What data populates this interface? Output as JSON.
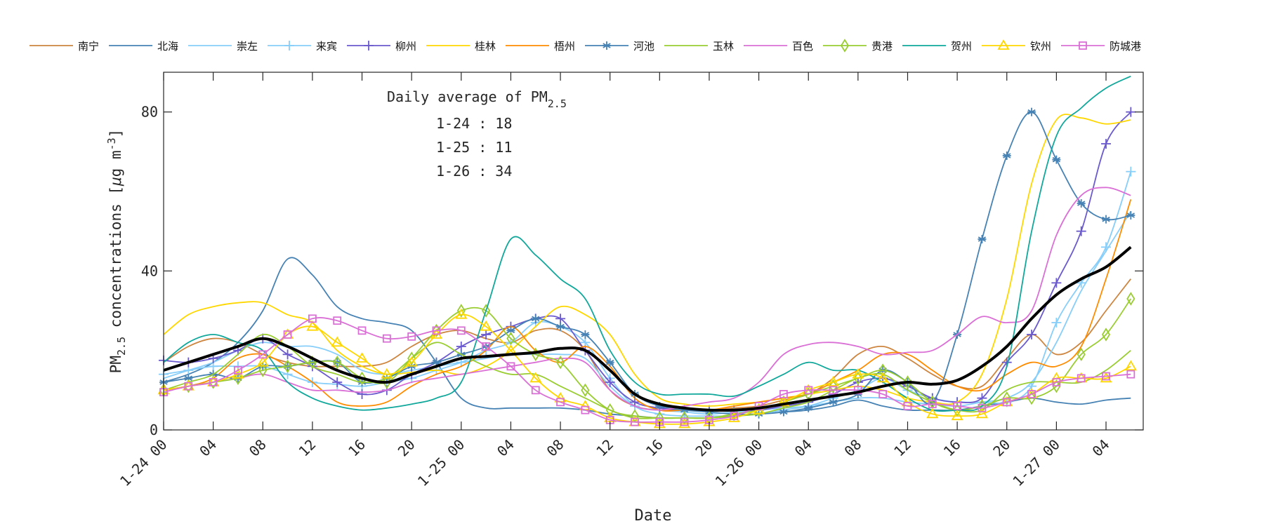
{
  "chart_data": {
    "type": "line",
    "xlabel": "Date",
    "ylabel": "PM2.5 concentrations [μg m-3]",
    "ylabel_parts": {
      "base": "PM",
      "sub": "2.5",
      "mid": " concentrations [",
      "mu": "μ",
      "unit": "g m",
      "sup": "-3",
      "end": "]"
    },
    "ylim": [
      0,
      90
    ],
    "xlim": [
      "1-24 00",
      "1-27 07"
    ],
    "yticks": [
      0,
      40,
      80
    ],
    "xticks": [
      "1-24 00",
      "04",
      "08",
      "12",
      "16",
      "20",
      "1-25 00",
      "04",
      "08",
      "12",
      "16",
      "20",
      "1-26 00",
      "04",
      "08",
      "12",
      "16",
      "20",
      "1-27 00",
      "04"
    ],
    "grid": false,
    "legend_placement": "top, outside",
    "annotation": {
      "title_base": "Daily average of PM",
      "title_sub": "2.5",
      "lines": [
        "1-24 : 18",
        "1-25 : 11",
        "1-26 : 34"
      ]
    },
    "x": [
      "1-24 00",
      "1-24 02",
      "1-24 04",
      "1-24 06",
      "1-24 08",
      "1-24 10",
      "1-24 12",
      "1-24 14",
      "1-24 16",
      "1-24 18",
      "1-24 20",
      "1-24 22",
      "1-25 00",
      "1-25 02",
      "1-25 04",
      "1-25 06",
      "1-25 08",
      "1-25 10",
      "1-25 12",
      "1-25 14",
      "1-25 16",
      "1-25 18",
      "1-25 20",
      "1-25 22",
      "1-26 00",
      "1-26 02",
      "1-26 04",
      "1-26 06",
      "1-26 08",
      "1-26 10",
      "1-26 12",
      "1-26 14",
      "1-26 16",
      "1-26 18",
      "1-26 20",
      "1-26 22",
      "1-27 00",
      "1-27 02",
      "1-27 04",
      "1-27 06"
    ],
    "series": [
      {
        "name": "南宁",
        "color": "#cd853f",
        "marker": "none",
        "values": [
          17,
          21,
          23,
          22,
          19,
          17,
          16,
          16,
          16,
          17,
          21,
          24,
          25,
          23,
          22,
          25,
          25,
          20,
          10,
          6,
          5,
          5,
          5,
          5.5,
          6,
          7.5,
          9,
          13,
          19,
          21,
          18,
          14,
          11,
          11,
          18,
          24,
          19,
          22,
          30,
          38
        ]
      },
      {
        "name": "北海",
        "color": "#4682b4",
        "marker": "none",
        "values": [
          12,
          14,
          17,
          22,
          30,
          43,
          39,
          31,
          28,
          27,
          25,
          17,
          8,
          5.5,
          5.5,
          5.5,
          5.5,
          5,
          4,
          3.5,
          3,
          3,
          3,
          3.5,
          4,
          4.5,
          5,
          6,
          7.5,
          6,
          5,
          5,
          5,
          6,
          7,
          8,
          7,
          6.5,
          7.5,
          8
        ]
      },
      {
        "name": "崇左",
        "color": "#87cefa",
        "marker": "none",
        "values": [
          13,
          15,
          17,
          20,
          22,
          21,
          21,
          19,
          15,
          14,
          15,
          16,
          17,
          18,
          19,
          19,
          19,
          18,
          11,
          6,
          5,
          4.5,
          4,
          4.5,
          5,
          5.5,
          6,
          7,
          8,
          8,
          7,
          6.5,
          6,
          7,
          8,
          12,
          22,
          35,
          45,
          55
        ]
      },
      {
        "name": "来宾",
        "color": "#87cefa",
        "marker": "plus",
        "values": [
          14,
          15,
          16,
          16,
          16,
          14,
          12,
          11.5,
          11,
          12,
          13,
          15,
          17,
          20,
          22,
          27,
          26,
          22,
          13,
          6,
          4,
          3.5,
          3.5,
          3.5,
          4,
          5,
          6,
          8,
          10,
          13,
          10,
          8,
          7,
          7,
          7,
          11,
          27,
          37,
          46,
          65
        ]
      },
      {
        "name": "柳州",
        "color": "#6a5acd",
        "marker": "plus",
        "values": [
          17.5,
          17,
          18,
          20,
          23,
          19,
          16,
          12,
          9,
          10,
          14,
          17,
          21,
          24,
          26,
          28,
          28,
          20,
          12,
          7,
          5.5,
          5,
          5,
          5,
          5,
          6,
          7,
          9,
          12,
          13,
          11,
          8,
          7,
          8,
          17,
          24,
          37,
          50,
          72,
          80
        ]
      },
      {
        "name": "桂林",
        "color": "#ffd700",
        "marker": "none",
        "values": [
          24,
          29,
          31,
          32,
          32,
          29,
          27,
          20,
          16,
          14,
          14.5,
          15,
          14,
          16,
          20,
          26,
          31,
          29,
          24,
          14,
          8,
          6.5,
          6,
          6.5,
          7,
          8,
          9,
          10,
          11,
          10,
          8,
          7,
          7,
          14,
          33,
          62,
          78,
          78.5,
          77,
          78
        ]
      },
      {
        "name": "梧州",
        "color": "#ff8c00",
        "marker": "none",
        "values": [
          10,
          11,
          13,
          18,
          19,
          16,
          12,
          7,
          6,
          7,
          11,
          14,
          16,
          20,
          26,
          20,
          17,
          21,
          16,
          8,
          5,
          5,
          5,
          6,
          7,
          8,
          9,
          12,
          15,
          19,
          19,
          15,
          11,
          10,
          14,
          17,
          16,
          21,
          38,
          58
        ]
      },
      {
        "name": "河池",
        "color": "#4682b4",
        "marker": "star",
        "values": [
          12,
          13,
          14,
          13,
          16,
          16,
          17,
          17,
          12,
          13,
          16,
          17,
          19,
          21,
          25,
          28,
          26,
          24,
          17,
          9,
          6,
          5,
          4.5,
          4,
          4,
          4.5,
          5.5,
          7,
          9,
          15,
          12,
          7,
          24,
          48,
          69,
          80,
          68,
          57,
          53,
          54
        ]
      },
      {
        "name": "玉林",
        "color": "#9acd32",
        "marker": "none",
        "values": [
          10,
          12,
          14,
          19,
          24,
          21,
          16,
          14,
          12,
          13,
          18,
          22,
          19,
          16,
          14,
          14,
          11,
          8,
          5,
          3,
          3,
          3,
          3,
          3.5,
          4,
          5.5,
          7,
          10,
          13,
          14,
          10,
          7,
          5,
          5,
          10,
          12,
          12,
          12,
          15,
          20
        ]
      },
      {
        "name": "百色",
        "color": "#da70d6",
        "marker": "none",
        "values": [
          10,
          11,
          12,
          13,
          14,
          12,
          10,
          10,
          9.5,
          10,
          12,
          13,
          14,
          15,
          16,
          17,
          18,
          17,
          10,
          6,
          5,
          6,
          7,
          8,
          12,
          19,
          21.5,
          22,
          21,
          19,
          19.5,
          20,
          24,
          28.5,
          27,
          30,
          49,
          59,
          61,
          59
        ]
      },
      {
        "name": "贵港",
        "color": "#9acd32",
        "marker": "diamond",
        "values": [
          10,
          11,
          12,
          13,
          15,
          16,
          17,
          17,
          13,
          12,
          18,
          25,
          30,
          30,
          23,
          19,
          17,
          10,
          5,
          3.5,
          3,
          3,
          3,
          4,
          5,
          7,
          9,
          11,
          13,
          15,
          12,
          7,
          5,
          6,
          8,
          8,
          11,
          19,
          24,
          33
        ]
      },
      {
        "name": "贺州",
        "color": "#11a89b",
        "marker": "none",
        "values": [
          17,
          22,
          24,
          22,
          20,
          12,
          8,
          6,
          5,
          5.5,
          6.5,
          8,
          12,
          30,
          48,
          44,
          38,
          33,
          20,
          12,
          9,
          9,
          9,
          8.5,
          11,
          14,
          17,
          15,
          15,
          12,
          8,
          5,
          5,
          6,
          16,
          50,
          74,
          81,
          86,
          89
        ]
      },
      {
        "name": "钦州",
        "color": "#ffd700",
        "marker": "triangle",
        "values": [
          10,
          11,
          12,
          14,
          17,
          24,
          26,
          22,
          18,
          14,
          17,
          24,
          29,
          26,
          20,
          13,
          8,
          6,
          3,
          2,
          1.5,
          1.5,
          2,
          3,
          5,
          7,
          10,
          12,
          14,
          13,
          7,
          4,
          3.5,
          4,
          7,
          9,
          13,
          13,
          13,
          16
        ]
      },
      {
        "name": "防城港",
        "color": "#da70d6",
        "marker": "square",
        "values": [
          9.5,
          11,
          12,
          15,
          19,
          24,
          28,
          27.5,
          25,
          23,
          23.5,
          25,
          25,
          21,
          16,
          10,
          7,
          5,
          2.5,
          2,
          2,
          2,
          2.5,
          3.5,
          6,
          9,
          10,
          10,
          10,
          9,
          6,
          6.5,
          6,
          5.5,
          7,
          9,
          12,
          13,
          13.5,
          14
        ]
      },
      {
        "color": "#000000",
        "marker": "none",
        "bold": true,
        "values": [
          15,
          17,
          19,
          21,
          23,
          21,
          18,
          15,
          13,
          12,
          14,
          16,
          18,
          18.5,
          19,
          19.5,
          20.5,
          20,
          15,
          9,
          6.5,
          5.5,
          5,
          5,
          5.5,
          6.5,
          7.5,
          8.5,
          9.5,
          11,
          12,
          11.5,
          12.5,
          16,
          21,
          28,
          34,
          38,
          41,
          46
        ]
      }
    ]
  }
}
